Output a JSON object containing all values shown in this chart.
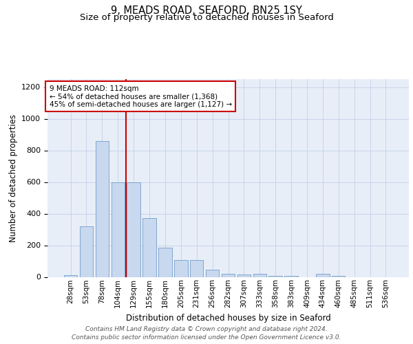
{
  "title": "9, MEADS ROAD, SEAFORD, BN25 1SY",
  "subtitle": "Size of property relative to detached houses in Seaford",
  "xlabel": "Distribution of detached houses by size in Seaford",
  "ylabel": "Number of detached properties",
  "categories": [
    "28sqm",
    "53sqm",
    "78sqm",
    "104sqm",
    "129sqm",
    "155sqm",
    "180sqm",
    "205sqm",
    "231sqm",
    "256sqm",
    "282sqm",
    "307sqm",
    "333sqm",
    "358sqm",
    "383sqm",
    "409sqm",
    "434sqm",
    "460sqm",
    "485sqm",
    "511sqm",
    "536sqm"
  ],
  "values": [
    10,
    320,
    860,
    600,
    600,
    370,
    185,
    105,
    105,
    45,
    20,
    15,
    20,
    5,
    5,
    0,
    20,
    5,
    0,
    0,
    0
  ],
  "bar_color": "#c8d8ee",
  "bar_edge_color": "#6090c0",
  "vline_x": 3.5,
  "vline_color": "#cc0000",
  "annotation_text": "9 MEADS ROAD: 112sqm\n← 54% of detached houses are smaller (1,368)\n45% of semi-detached houses are larger (1,127) →",
  "annotation_box_color": "#cc0000",
  "ylim": [
    0,
    1250
  ],
  "yticks": [
    0,
    200,
    400,
    600,
    800,
    1000,
    1200
  ],
  "grid_color": "#c8d4e8",
  "background_color": "#e8eef8",
  "footer_text": "Contains HM Land Registry data © Crown copyright and database right 2024.\nContains public sector information licensed under the Open Government Licence v3.0.",
  "title_fontsize": 10.5,
  "subtitle_fontsize": 9.5,
  "axis_label_fontsize": 8.5,
  "tick_fontsize": 8,
  "annotation_fontsize": 7.5,
  "footer_fontsize": 6.5
}
